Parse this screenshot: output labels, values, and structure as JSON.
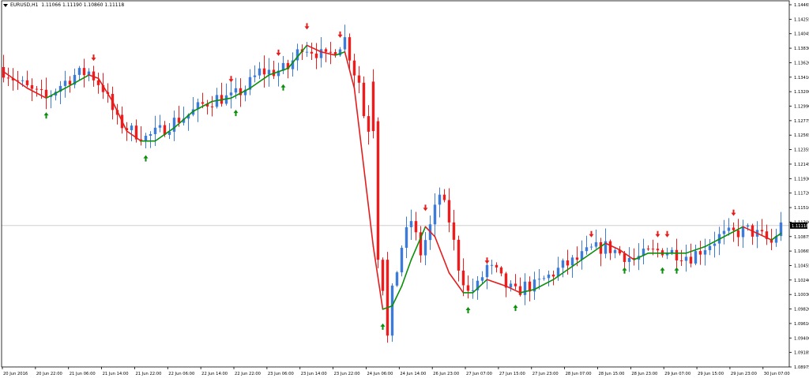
{
  "header": {
    "symbol": "EURUSD,H1",
    "ohlc": "1.11066 1.11190 1.10860 1.11118"
  },
  "colors": {
    "bull": "#3d7bd9",
    "bear": "#ee1c1c",
    "ma_up": "#0a8f0a",
    "ma_down": "#e51c1c",
    "arrow_up": "#0a8f0a",
    "arrow_down": "#e51c1c",
    "axis": "#000000",
    "price_line": "#c8c8c8",
    "price_tag_bg": "#000000",
    "price_tag_fg": "#ffffff"
  },
  "chart_data": {
    "type": "candlestick",
    "symbol": "EURUSD",
    "timeframe": "H1",
    "grid": false,
    "ylim": [
      1.08975,
      1.14465
    ],
    "y_ticks": [
      "1.14465",
      "1.14255",
      "1.14045",
      "1.13830",
      "1.13620",
      "1.13410",
      "1.13200",
      "1.12990",
      "1.12775",
      "1.12565",
      "1.12355",
      "1.12145",
      "1.11930",
      "1.11720",
      "1.11510",
      "1.11300",
      "1.10875",
      "1.10665",
      "1.10455",
      "1.10240",
      "1.10030",
      "1.09820",
      "1.09610",
      "1.09400",
      "1.09185",
      "1.08975"
    ],
    "current_price": "1.11118",
    "x_ticks": [
      "20 Jun 2016",
      "20 Jun 22:00",
      "21 Jun 06:00",
      "21 Jun 14:00",
      "21 Jun 22:00",
      "22 Jun 06:00",
      "22 Jun 14:00",
      "22 Jun 22:00",
      "23 Jun 06:00",
      "23 Jun 14:00",
      "23 Jun 22:00",
      "24 Jun 06:00",
      "24 Jun 14:00",
      "26 Jun 23:00",
      "27 Jun 07:00",
      "27 Jun 15:00",
      "27 Jun 23:00",
      "28 Jun 07:00",
      "28 Jun 15:00",
      "28 Jun 23:00",
      "29 Jun 07:00",
      "29 Jun 15:00",
      "29 Jun 23:00",
      "30 Jun 07:00"
    ],
    "close_path": [
      [
        0,
        1.1347
      ],
      [
        3,
        1.133
      ],
      [
        6,
        1.1315
      ],
      [
        9,
        1.1305
      ],
      [
        12,
        1.1325
      ],
      [
        15,
        1.134
      ],
      [
        18,
        1.1345
      ],
      [
        21,
        1.132
      ],
      [
        24,
        1.127
      ],
      [
        27,
        1.1255
      ],
      [
        30,
        1.1245
      ],
      [
        33,
        1.1255
      ],
      [
        36,
        1.127
      ],
      [
        39,
        1.128
      ],
      [
        42,
        1.1295
      ],
      [
        45,
        1.1305
      ],
      [
        48,
        1.1305
      ],
      [
        51,
        1.132
      ],
      [
        54,
        1.1345
      ],
      [
        57,
        1.1345
      ],
      [
        60,
        1.135
      ],
      [
        63,
        1.1385
      ],
      [
        66,
        1.1375
      ],
      [
        68,
        1.1365
      ],
      [
        70,
        1.138
      ],
      [
        72,
        1.1395
      ],
      [
        74,
        1.1345
      ],
      [
        75,
        1.133
      ],
      [
        76,
        1.128
      ],
      [
        77,
        1.126
      ],
      [
        78,
        1.118
      ],
      [
        79,
        1.106
      ],
      [
        80,
        1.102
      ],
      [
        81,
        1.096
      ],
      [
        82,
        1.101
      ],
      [
        84,
        1.108
      ],
      [
        86,
        1.112
      ],
      [
        88,
        1.107
      ],
      [
        90,
        1.111
      ],
      [
        92,
        1.116
      ],
      [
        94,
        1.112
      ],
      [
        96,
        1.105
      ],
      [
        98,
        1.101
      ],
      [
        100,
        1.102
      ],
      [
        102,
        1.105
      ],
      [
        104,
        1.104
      ],
      [
        106,
        1.102
      ],
      [
        108,
        1.101
      ],
      [
        110,
        1.102
      ],
      [
        112,
        1.102
      ],
      [
        115,
        1.1035
      ],
      [
        118,
        1.105
      ],
      [
        121,
        1.106
      ],
      [
        124,
        1.1075
      ],
      [
        127,
        1.108
      ],
      [
        130,
        1.107
      ],
      [
        133,
        1.106
      ],
      [
        136,
        1.107
      ],
      [
        139,
        1.1075
      ],
      [
        142,
        1.107
      ],
      [
        145,
        1.1065
      ],
      [
        148,
        1.108
      ],
      [
        151,
        1.1095
      ],
      [
        154,
        1.11
      ],
      [
        157,
        1.1105
      ],
      [
        160,
        1.1095
      ],
      [
        162,
        1.1085
      ],
      [
        164,
        1.1112
      ]
    ],
    "moving_average": {
      "name": "",
      "values": [
        [
          0,
          1.1345
        ],
        [
          5,
          1.132
        ],
        [
          9,
          1.1305
        ],
        [
          13,
          1.132
        ],
        [
          18,
          1.134
        ],
        [
          20,
          1.1335
        ],
        [
          23,
          1.13
        ],
        [
          26,
          1.1255
        ],
        [
          29,
          1.124
        ],
        [
          32,
          1.124
        ],
        [
          36,
          1.126
        ],
        [
          40,
          1.1285
        ],
        [
          44,
          1.13
        ],
        [
          48,
          1.1305
        ],
        [
          52,
          1.132
        ],
        [
          56,
          1.134
        ],
        [
          60,
          1.135
        ],
        [
          64,
          1.1385
        ],
        [
          67,
          1.1375
        ],
        [
          70,
          1.137
        ],
        [
          72,
          1.1375
        ],
        [
          74,
          1.132
        ],
        [
          76,
          1.12
        ],
        [
          78,
          1.108
        ],
        [
          80,
          1.0985
        ],
        [
          82,
          1.099
        ],
        [
          84,
          1.102
        ],
        [
          86,
          1.106
        ],
        [
          89,
          1.111
        ],
        [
          91,
          1.1095
        ],
        [
          94,
          1.104
        ],
        [
          97,
          1.101
        ],
        [
          99,
          1.101
        ],
        [
          102,
          1.103
        ],
        [
          106,
          1.102
        ],
        [
          109,
          1.101
        ],
        [
          112,
          1.1015
        ],
        [
          116,
          1.103
        ],
        [
          120,
          1.105
        ],
        [
          124,
          1.107
        ],
        [
          127,
          1.1085
        ],
        [
          130,
          1.1075
        ],
        [
          133,
          1.106
        ],
        [
          136,
          1.107
        ],
        [
          140,
          1.107
        ],
        [
          144,
          1.107
        ],
        [
          148,
          1.108
        ],
        [
          152,
          1.1095
        ],
        [
          156,
          1.111
        ],
        [
          159,
          1.11
        ],
        [
          162,
          1.109
        ],
        [
          164,
          1.11
        ]
      ],
      "up_color": "#0a8f0a",
      "down_color": "#e51c1c"
    },
    "signals_up": [
      9,
      30,
      49,
      59,
      80,
      98,
      108,
      131,
      139,
      142
    ],
    "signals_down": [
      19,
      48,
      58,
      64,
      71,
      89,
      102,
      124,
      138,
      140,
      154
    ]
  }
}
